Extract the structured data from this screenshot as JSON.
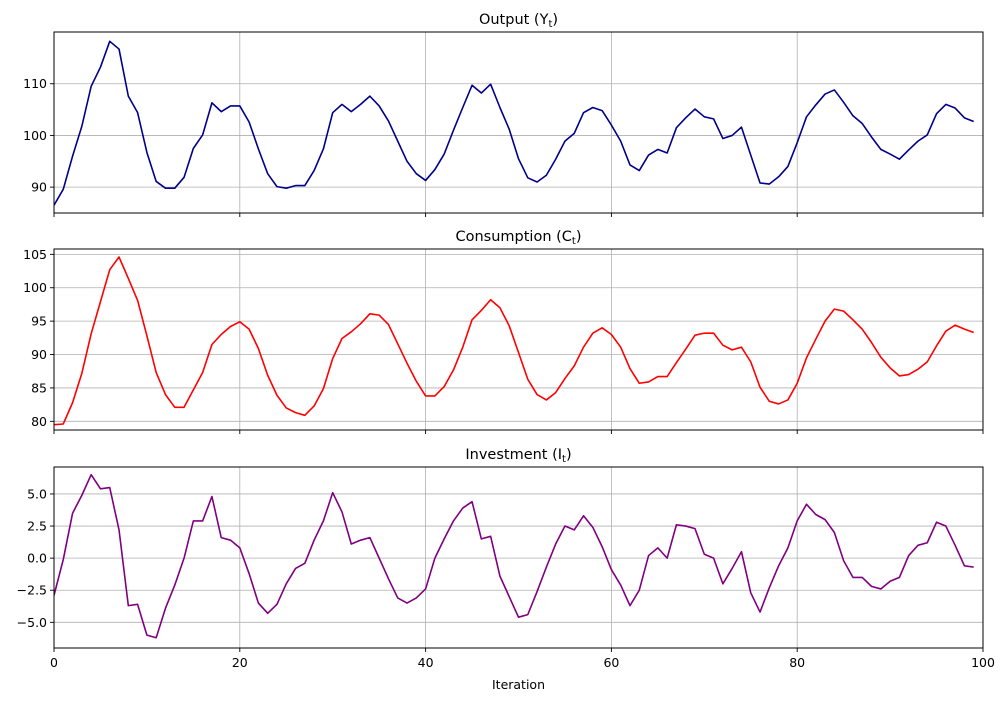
{
  "chart_data": [
    {
      "type": "line",
      "title": "Output (Y",
      "title_sub": "t",
      "title_close": ")",
      "xlabel": "",
      "ylabel": "",
      "xlim": [
        0,
        100
      ],
      "ylim": [
        85,
        120
      ],
      "yticks": [
        90,
        100,
        110
      ],
      "ytick_labels": [
        "90",
        "100",
        "110"
      ],
      "xticks": [
        0,
        20,
        40,
        60,
        80,
        100
      ],
      "xtick_labels": [],
      "grid": true,
      "color": "#00008b",
      "series": [
        {
          "x": [
            0,
            1,
            2,
            3,
            4,
            5,
            6,
            7,
            8,
            9,
            10,
            11,
            12,
            13,
            14,
            15,
            16,
            17,
            18,
            19,
            20,
            21,
            22,
            23,
            24,
            25,
            26,
            27,
            28,
            29,
            30,
            31,
            32,
            33,
            34,
            35,
            36,
            37,
            38,
            39,
            40,
            41,
            42,
            43,
            44,
            45,
            46,
            47,
            48,
            49,
            50,
            51,
            52,
            53,
            54,
            55,
            56,
            57,
            58,
            59,
            60,
            61,
            62,
            63,
            64,
            65,
            66,
            67,
            68,
            69,
            70,
            71,
            72,
            73,
            74,
            75,
            76,
            77,
            78,
            79,
            80,
            81,
            82,
            83,
            84,
            85,
            86,
            87,
            88,
            89,
            90,
            91,
            92,
            93,
            94,
            95,
            96,
            97,
            98,
            99
          ],
          "values": [
            86.5,
            89.6,
            96.0,
            101.8,
            109.5,
            113.2,
            118.2,
            116.7,
            107.6,
            104.4,
            96.7,
            91.1,
            89.8,
            89.8,
            91.9,
            97.5,
            100.1,
            106.3,
            104.6,
            105.7,
            105.7,
            102.6,
            97.4,
            92.6,
            90.1,
            89.8,
            90.3,
            90.3,
            93.2,
            97.4,
            104.4,
            106.0,
            104.6,
            106.0,
            107.6,
            105.7,
            102.8,
            98.9,
            95.0,
            92.6,
            91.3,
            93.4,
            96.4,
            101.0,
            105.4,
            109.7,
            108.2,
            109.9,
            105.4,
            101.2,
            95.5,
            91.8,
            91.0,
            92.3,
            95.4,
            98.9,
            100.4,
            104.4,
            105.4,
            104.8,
            102.0,
            98.9,
            94.3,
            93.2,
            96.2,
            97.3,
            96.6,
            101.5,
            103.4,
            105.1,
            103.6,
            103.2,
            99.4,
            100.0,
            101.6,
            96.2,
            90.8,
            90.6,
            92.0,
            94.0,
            98.6,
            103.6,
            105.9,
            108.0,
            108.8,
            106.4,
            103.8,
            102.3,
            99.7,
            97.3,
            96.4,
            95.4,
            97.2,
            98.9,
            100.1,
            104.2,
            106.0,
            105.3,
            103.4,
            102.7
          ]
        }
      ]
    },
    {
      "type": "line",
      "title": "Consumption (C",
      "title_sub": "t",
      "title_close": ")",
      "xlabel": "",
      "ylabel": "",
      "xlim": [
        0,
        100
      ],
      "ylim": [
        78.7,
        105.8
      ],
      "yticks": [
        80,
        85,
        90,
        95,
        100,
        105
      ],
      "ytick_labels": [
        "80",
        "85",
        "90",
        "95",
        "100",
        "105"
      ],
      "xticks": [
        0,
        20,
        40,
        60,
        80,
        100
      ],
      "xtick_labels": [],
      "grid": true,
      "color": "#ff0000",
      "series": [
        {
          "x": [
            0,
            1,
            2,
            3,
            4,
            5,
            6,
            7,
            8,
            9,
            10,
            11,
            12,
            13,
            14,
            15,
            16,
            17,
            18,
            19,
            20,
            21,
            22,
            23,
            24,
            25,
            26,
            27,
            28,
            29,
            30,
            31,
            32,
            33,
            34,
            35,
            36,
            37,
            38,
            39,
            40,
            41,
            42,
            43,
            44,
            45,
            46,
            47,
            48,
            49,
            50,
            51,
            52,
            53,
            54,
            55,
            56,
            57,
            58,
            59,
            60,
            61,
            62,
            63,
            64,
            65,
            66,
            67,
            68,
            69,
            70,
            71,
            72,
            73,
            74,
            75,
            76,
            77,
            78,
            79,
            80,
            81,
            82,
            83,
            84,
            85,
            86,
            87,
            88,
            89,
            90,
            91,
            92,
            93,
            94,
            95,
            96,
            97,
            98,
            99
          ],
          "values": [
            79.5,
            79.6,
            82.8,
            87.2,
            93.1,
            97.9,
            102.7,
            104.6,
            101.4,
            98.1,
            92.8,
            87.3,
            84.0,
            82.1,
            82.1,
            84.7,
            87.3,
            91.5,
            93.0,
            94.2,
            94.9,
            93.8,
            90.9,
            86.9,
            83.9,
            82.0,
            81.3,
            80.9,
            82.3,
            84.9,
            89.4,
            92.4,
            93.4,
            94.6,
            96.1,
            95.9,
            94.5,
            91.6,
            88.7,
            86.0,
            83.8,
            83.8,
            85.2,
            87.7,
            91.1,
            95.2,
            96.6,
            98.2,
            97.0,
            94.3,
            90.3,
            86.3,
            84.0,
            83.2,
            84.3,
            86.4,
            88.3,
            91.1,
            93.2,
            94.0,
            93.0,
            91.1,
            87.9,
            85.7,
            85.9,
            86.7,
            86.7,
            88.8,
            90.8,
            92.9,
            93.2,
            93.2,
            91.4,
            90.7,
            91.1,
            88.9,
            85.1,
            83.0,
            82.6,
            83.2,
            85.7,
            89.5,
            92.3,
            95.0,
            96.8,
            96.5,
            95.2,
            93.8,
            91.8,
            89.6,
            88.0,
            86.8,
            87.0,
            87.8,
            88.9,
            91.3,
            93.5,
            94.4,
            93.8,
            93.3
          ]
        }
      ]
    },
    {
      "type": "line",
      "title": "Investment (I",
      "title_sub": "t",
      "title_close": ")",
      "xlabel": "Iteration",
      "ylabel": "",
      "xlim": [
        0,
        100
      ],
      "ylim": [
        -7,
        7.1
      ],
      "yticks": [
        -5.0,
        -2.5,
        0.0,
        2.5,
        5.0
      ],
      "ytick_labels": [
        "−5.0",
        "−2.5",
        "0.0",
        "2.5",
        "5.0"
      ],
      "xticks": [
        0,
        20,
        40,
        60,
        80,
        100
      ],
      "xtick_labels": [
        "0",
        "20",
        "40",
        "60",
        "80",
        "100"
      ],
      "grid": true,
      "color": "#800080",
      "series": [
        {
          "x": [
            0,
            1,
            2,
            3,
            4,
            5,
            6,
            7,
            8,
            9,
            10,
            11,
            12,
            13,
            14,
            15,
            16,
            17,
            18,
            19,
            20,
            21,
            22,
            23,
            24,
            25,
            26,
            27,
            28,
            29,
            30,
            31,
            32,
            33,
            34,
            35,
            36,
            37,
            38,
            39,
            40,
            41,
            42,
            43,
            44,
            45,
            46,
            47,
            48,
            49,
            50,
            51,
            52,
            53,
            54,
            55,
            56,
            57,
            58,
            59,
            60,
            61,
            62,
            63,
            64,
            65,
            66,
            67,
            68,
            69,
            70,
            71,
            72,
            73,
            74,
            75,
            76,
            77,
            78,
            79,
            80,
            81,
            82,
            83,
            84,
            85,
            86,
            87,
            88,
            89,
            90,
            91,
            92,
            93,
            94,
            95,
            96,
            97,
            98,
            99
          ],
          "values": [
            -2.9,
            -0.1,
            3.5,
            4.9,
            6.5,
            5.4,
            5.5,
            2.2,
            -3.7,
            -3.6,
            -6.0,
            -6.2,
            -3.9,
            -2.1,
            0.0,
            2.9,
            2.9,
            4.8,
            1.6,
            1.4,
            0.8,
            -1.2,
            -3.5,
            -4.3,
            -3.6,
            -2.0,
            -0.8,
            -0.4,
            1.4,
            2.9,
            5.1,
            3.6,
            1.1,
            1.4,
            1.6,
            0.0,
            -1.6,
            -3.1,
            -3.5,
            -3.1,
            -2.4,
            0.0,
            1.5,
            2.9,
            3.9,
            4.4,
            1.5,
            1.7,
            -1.4,
            -3.0,
            -4.6,
            -4.4,
            -2.6,
            -0.7,
            1.1,
            2.5,
            2.2,
            3.3,
            2.4,
            0.9,
            -0.9,
            -2.1,
            -3.7,
            -2.5,
            0.2,
            0.8,
            0.0,
            2.6,
            2.5,
            2.3,
            0.3,
            0.0,
            -2.0,
            -0.8,
            0.5,
            -2.7,
            -4.2,
            -2.3,
            -0.6,
            0.8,
            2.9,
            4.2,
            3.4,
            3.0,
            2.0,
            -0.2,
            -1.5,
            -1.5,
            -2.2,
            -2.4,
            -1.8,
            -1.5,
            0.2,
            1.0,
            1.2,
            2.8,
            2.5,
            1.0,
            -0.6,
            -0.7
          ]
        }
      ]
    }
  ]
}
